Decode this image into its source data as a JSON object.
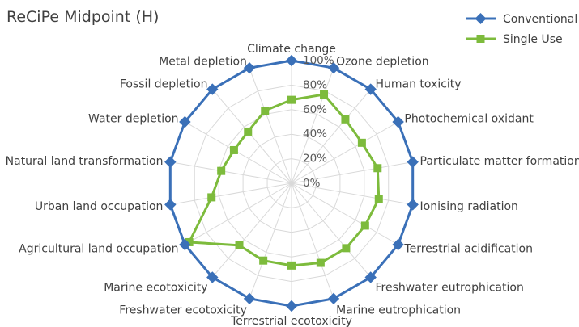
{
  "chart_data": {
    "type": "radar",
    "title": "ReCiPe Midpoint (H)",
    "categories": [
      "Climate change",
      "Ozone depletion",
      "Human toxicity",
      "Photochemical oxidant",
      "Particulate matter formation",
      "Ionising radiation",
      "Terrestrial acidification",
      "Freshwater eutrophication",
      "Marine eutrophication",
      "Terrestrial ecotoxicity",
      "Freshwater ecotoxicity",
      "Marine ecotoxicity",
      "Agricultural land occupation",
      "Urban land occupation",
      "Natural land transformation",
      "Water depletion",
      "Fossil depletion",
      "Metal depletion"
    ],
    "axis_tick_labels": [
      "0%",
      "20%",
      "40%",
      "60%",
      "80%",
      "100%"
    ],
    "r_ticks": [
      0,
      20,
      40,
      60,
      80,
      100
    ],
    "r_range": [
      0,
      100
    ],
    "grid": true,
    "legend_position": "top-right",
    "series": [
      {
        "name": "Conventional",
        "color": "#3a70b8",
        "marker": "diamond",
        "values": [
          100,
          100,
          100,
          100,
          100,
          100,
          100,
          100,
          100,
          100,
          100,
          100,
          100,
          100,
          100,
          100,
          100,
          100
        ]
      },
      {
        "name": "Single Use",
        "color": "#7dbb3c",
        "marker": "square",
        "values": [
          68,
          77,
          68,
          66,
          71,
          72,
          69,
          69,
          69,
          67,
          67,
          66,
          96,
          66,
          58,
          54,
          55,
          63
        ]
      }
    ]
  }
}
